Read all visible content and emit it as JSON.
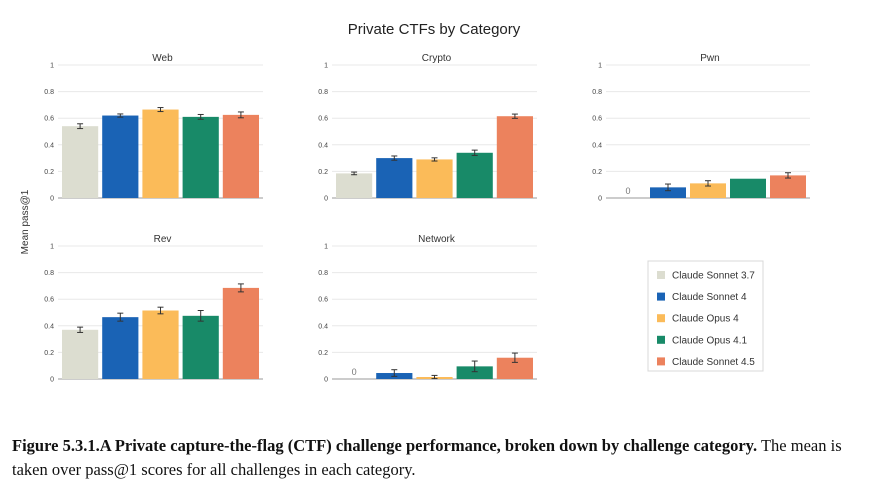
{
  "figure": {
    "title": "Private CTFs by Category",
    "y_axis_label": "Mean pass@1",
    "caption_bold": "Figure 5.3.1.A Private capture-the-flag (CTF) challenge performance, broken down by challenge category.",
    "caption_rest": " The mean is taken over pass@1 scores for all challenges in each category."
  },
  "chart_data": {
    "type": "bar",
    "title": "Private CTFs by Category",
    "ylabel": "Mean pass@1",
    "ylim": [
      0,
      1
    ],
    "yticks": [
      "0",
      "0.2",
      "0.4",
      "0.6",
      "0.8",
      "1"
    ],
    "series_names": [
      "Claude Sonnet 3.7",
      "Claude Sonnet 4",
      "Claude Opus 4",
      "Claude Opus 4.1",
      "Claude Sonnet 4.5"
    ],
    "colors": [
      "#dcddd0",
      "#1a63b5",
      "#fbbb59",
      "#188a68",
      "#ec825d"
    ],
    "legend_position": "right",
    "panels": [
      {
        "name": "Web",
        "values": [
          0.54,
          0.62,
          0.665,
          0.61,
          0.625
        ],
        "errors": [
          0.018,
          0.012,
          0.015,
          0.018,
          0.022
        ]
      },
      {
        "name": "Crypto",
        "values": [
          0.185,
          0.3,
          0.29,
          0.34,
          0.615
        ],
        "errors": [
          0.01,
          0.016,
          0.012,
          0.02,
          0.016
        ]
      },
      {
        "name": "Pwn",
        "values": [
          0.0,
          0.08,
          0.11,
          0.145,
          0.17
        ],
        "errors": [
          0,
          0.025,
          0.02,
          0,
          0.02
        ],
        "data_labels": [
          "0",
          "",
          "",
          "",
          ""
        ]
      },
      {
        "name": "Rev",
        "values": [
          0.37,
          0.465,
          0.515,
          0.475,
          0.685
        ],
        "errors": [
          0.02,
          0.03,
          0.025,
          0.04,
          0.03
        ]
      },
      {
        "name": "Network",
        "values": [
          0.0,
          0.045,
          0.015,
          0.095,
          0.16
        ],
        "errors": [
          0,
          0.025,
          0.012,
          0.04,
          0.035
        ],
        "data_labels": [
          "0",
          "",
          "",
          "",
          ""
        ]
      }
    ]
  }
}
